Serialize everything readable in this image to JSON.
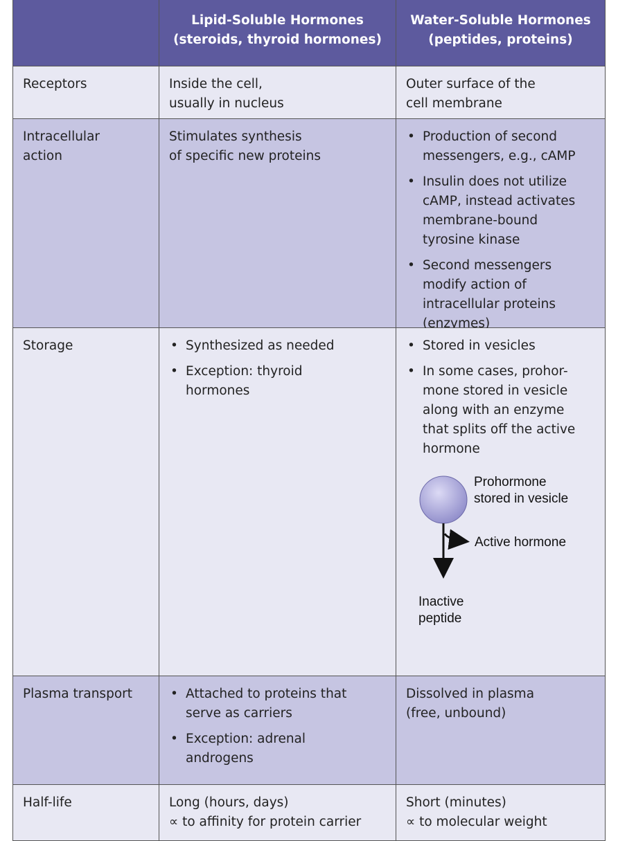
{
  "table": {
    "header": [
      [
        "Lipid-Soluble Hormones",
        "(steroids, thyroid hormones)"
      ],
      [
        "Water-Soluble Hormones",
        "(peptides, proteins)"
      ]
    ],
    "rows": [
      {
        "label": [
          "Receptors"
        ],
        "lipid": {
          "lines": [
            "Inside the cell,",
            "usually in nucleus"
          ]
        },
        "water": {
          "lines": [
            "Outer surface of the",
            "cell membrane"
          ]
        }
      },
      {
        "label": [
          "Intracellular",
          "action"
        ],
        "lipid": {
          "lines": [
            "Stimulates synthesis",
            "of specific new proteins"
          ]
        },
        "water": {
          "bullets": [
            [
              "Production of second",
              "messengers, e.g., cAMP"
            ],
            [
              "Insulin does not utilize",
              "cAMP, instead activates",
              "membrane-bound",
              "tyrosine kinase"
            ],
            [
              "Second messengers",
              "modify action of",
              "intracellular proteins",
              "(enzymes)"
            ]
          ]
        }
      },
      {
        "label": [
          "Storage"
        ],
        "lipid": {
          "bullets": [
            [
              "Synthesized as needed"
            ],
            [
              "Exception: thyroid",
              "hormones"
            ]
          ]
        },
        "water": {
          "bullets": [
            [
              "Stored in vesicles"
            ],
            [
              "In some cases, prohor-",
              "mone stored in vesicle",
              "along with an enzyme",
              "that splits off the active",
              "hormone"
            ]
          ],
          "figure": {
            "vesicle": [
              "Prohormone",
              "stored in vesicle"
            ],
            "active": "Active hormone",
            "inactive": [
              "Inactive",
              "peptide"
            ]
          }
        }
      },
      {
        "label": [
          "Plasma transport"
        ],
        "lipid": {
          "bullets": [
            [
              "Attached to proteins that",
              "serve as carriers"
            ],
            [
              "Exception: adrenal",
              "androgens"
            ]
          ]
        },
        "water": {
          "lines": [
            "Dissolved in plasma",
            "(free, unbound)"
          ]
        }
      },
      {
        "label": [
          "Half-life"
        ],
        "lipid": {
          "lines": [
            "Long (hours, days)",
            "∝ to affinity for protein carrier"
          ]
        },
        "water": {
          "lines": [
            "Short (minutes)",
            "∝ to molecular weight"
          ]
        }
      }
    ]
  }
}
